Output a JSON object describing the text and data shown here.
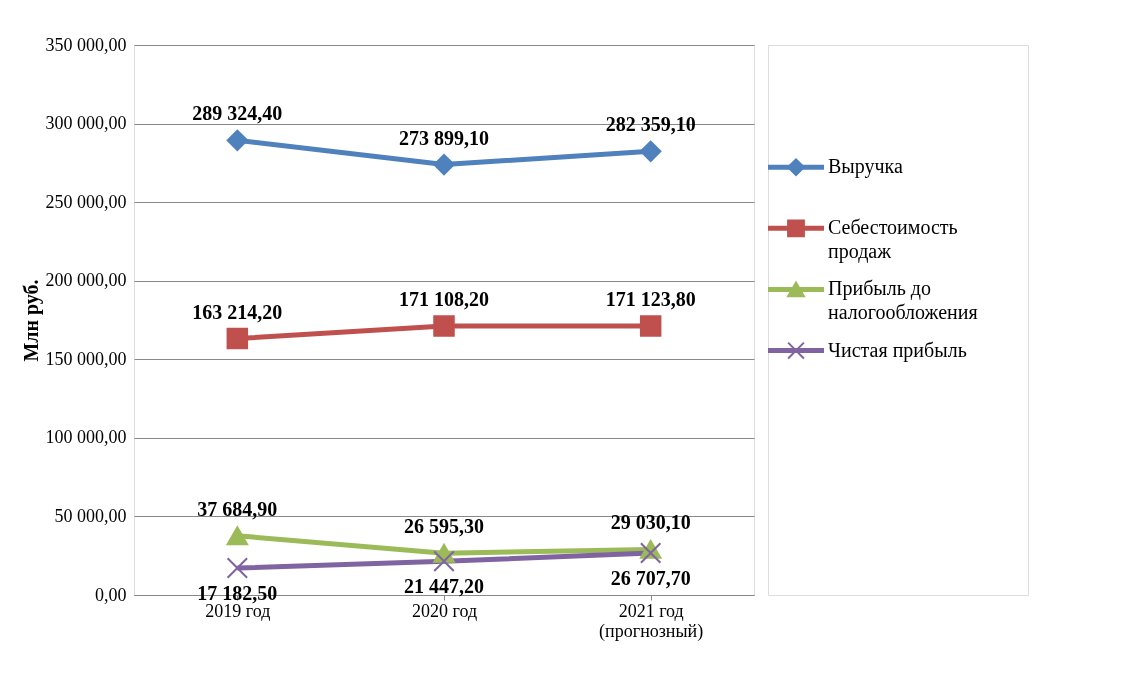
{
  "chart_data": {
    "type": "line",
    "ylabel": "Млн руб.",
    "categories": [
      "2019 год",
      "2020 год",
      "2021 год\n(прогнозный)"
    ],
    "series": [
      {
        "name": "Выручка",
        "color": "#4f81bd",
        "marker": "diamond",
        "values": [
          289324.4,
          273899.1,
          282359.1
        ],
        "value_labels": [
          "289 324,40",
          "273 899,10",
          "282 359,10"
        ]
      },
      {
        "name": "Себестоимость продаж",
        "color": "#c0504d",
        "marker": "square",
        "values": [
          163214.2,
          171108.2,
          171123.8
        ],
        "value_labels": [
          "163 214,20",
          "171 108,20",
          "171 123,80"
        ]
      },
      {
        "name": "Прибыль до налогообложения",
        "color": "#9bbb59",
        "marker": "triangle",
        "values": [
          37684.9,
          26595.3,
          29030.1
        ],
        "value_labels": [
          "37 684,90",
          "26 595,30",
          "29 030,10"
        ]
      },
      {
        "name": "Чистая прибыль",
        "color": "#8064a2",
        "marker": "cross",
        "values": [
          17182.5,
          21447.2,
          26707.7
        ],
        "value_labels": [
          "17 182,50",
          "21 447,20",
          "26 707,70"
        ]
      }
    ],
    "ylim": [
      0,
      350000
    ],
    "yticks": [
      {
        "value": 0,
        "label": "0,00"
      },
      {
        "value": 50000,
        "label": "50 000,00"
      },
      {
        "value": 100000,
        "label": "100 000,00"
      },
      {
        "value": 150000,
        "label": "150 000,00"
      },
      {
        "value": 200000,
        "label": "200 000,00"
      },
      {
        "value": 250000,
        "label": "250 000,00"
      },
      {
        "value": 300000,
        "label": "300 000,00"
      },
      {
        "value": 350000,
        "label": "350 000,00"
      }
    ],
    "grid": "y",
    "legend": "right",
    "line_style": "solid"
  }
}
